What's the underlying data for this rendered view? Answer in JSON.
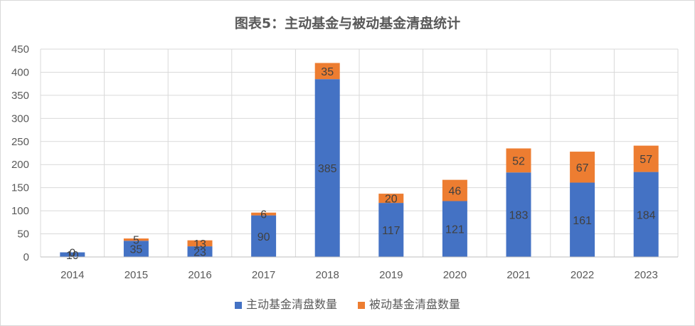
{
  "chart_data": {
    "type": "bar",
    "stacked": true,
    "title": "图表5：主动基金与被动基金清盘统计",
    "categories": [
      "2014",
      "2015",
      "2016",
      "2017",
      "2018",
      "2019",
      "2020",
      "2021",
      "2022",
      "2023"
    ],
    "series": [
      {
        "name": "主动基金清盘数量",
        "color": "#4472c4",
        "values": [
          10,
          35,
          23,
          90,
          385,
          117,
          121,
          183,
          161,
          184
        ]
      },
      {
        "name": "被动基金清盘数量",
        "color": "#ed7d31",
        "values": [
          0,
          5,
          13,
          6,
          35,
          20,
          46,
          52,
          67,
          57
        ]
      }
    ],
    "ylim": [
      0,
      450
    ],
    "yticks": [
      0,
      50,
      100,
      150,
      200,
      250,
      300,
      350,
      400,
      450
    ],
    "grid": true,
    "legend_position": "bottom"
  }
}
